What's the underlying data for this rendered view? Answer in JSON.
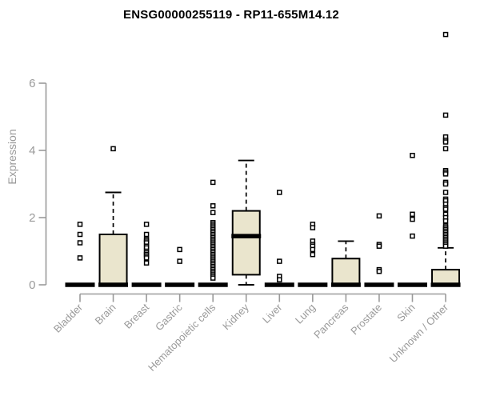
{
  "colors": {
    "background": "#ffffff",
    "axis": "#9a9a9a",
    "tick_text": "#9a9a9a",
    "title_text": "#000000",
    "box_fill": "#eae5cd",
    "box_border": "#000000",
    "median": "#000000",
    "whisker": "#000000",
    "outlier_stroke": "#000000",
    "outlier_fill": "#ffffff"
  },
  "chart_data": {
    "type": "boxplot",
    "title": "ENSG00000255119 - RP11-655M14.12",
    "xlabel": "",
    "ylabel": "Expression",
    "ylim": [
      0,
      6
    ],
    "yticks": [
      0,
      2,
      4,
      6
    ],
    "grid": false,
    "legend": "none",
    "categories": [
      "Bladder",
      "Brain",
      "Breast",
      "Gastric",
      "Hematopoietic cells",
      "Kidney",
      "Liver",
      "Lung",
      "Pancreas",
      "Prostate",
      "Skin",
      "Unknown / Other"
    ],
    "series": [
      {
        "name": "Bladder",
        "q1": 0,
        "median": 0,
        "q3": 0,
        "whisker_low": 0,
        "whisker_high": 0,
        "outliers": [
          1.8,
          1.5,
          1.25,
          0.8
        ]
      },
      {
        "name": "Brain",
        "q1": 0,
        "median": 0,
        "q3": 1.5,
        "whisker_low": 0,
        "whisker_high": 2.75,
        "outliers": [
          4.05
        ]
      },
      {
        "name": "Breast",
        "q1": 0,
        "median": 0,
        "q3": 0,
        "whisker_low": 0,
        "whisker_high": 0,
        "outliers": [
          1.8,
          1.5,
          1.35,
          1.3,
          1.25,
          1.15,
          1.1,
          1.0,
          0.95,
          0.9,
          0.85,
          0.8,
          0.65
        ]
      },
      {
        "name": "Gastric",
        "q1": 0,
        "median": 0,
        "q3": 0,
        "whisker_low": 0,
        "whisker_high": 0,
        "outliers": [
          1.05,
          0.7
        ]
      },
      {
        "name": "Hematopoietic cells",
        "q1": 0,
        "median": 0,
        "q3": 0,
        "whisker_low": 0,
        "whisker_high": 0,
        "outliers": [
          3.05,
          2.35,
          2.15,
          1.85,
          1.8,
          1.75,
          1.7,
          1.65,
          1.6,
          1.55,
          1.5,
          1.45,
          1.4,
          1.35,
          1.3,
          1.25,
          1.2,
          1.15,
          1.1,
          1.05,
          1.0,
          0.95,
          0.9,
          0.85,
          0.8,
          0.75,
          0.7,
          0.65,
          0.6,
          0.55,
          0.5,
          0.45,
          0.4,
          0.35,
          0.3,
          0.25,
          0.2
        ]
      },
      {
        "name": "Kidney",
        "q1": 0.3,
        "median": 1.45,
        "q3": 2.2,
        "whisker_low": 0,
        "whisker_high": 3.7,
        "outliers": []
      },
      {
        "name": "Liver",
        "q1": 0,
        "median": 0,
        "q3": 0,
        "whisker_low": 0,
        "whisker_high": 0,
        "outliers": [
          2.75,
          0.7,
          0.25,
          0.15
        ]
      },
      {
        "name": "Lung",
        "q1": 0,
        "median": 0,
        "q3": 0,
        "whisker_low": 0,
        "whisker_high": 0,
        "outliers": [
          1.8,
          1.7,
          1.3,
          1.2,
          1.15,
          1.05,
          0.9
        ]
      },
      {
        "name": "Pancreas",
        "q1": 0,
        "median": 0,
        "q3": 0.78,
        "whisker_low": 0,
        "whisker_high": 1.3,
        "outliers": []
      },
      {
        "name": "Prostate",
        "q1": 0,
        "median": 0,
        "q3": 0,
        "whisker_low": 0,
        "whisker_high": 0,
        "outliers": [
          2.05,
          1.2,
          1.15,
          0.45,
          0.4
        ]
      },
      {
        "name": "Skin",
        "q1": 0,
        "median": 0,
        "q3": 0,
        "whisker_low": 0,
        "whisker_high": 0,
        "outliers": [
          3.85,
          2.1,
          1.95,
          1.45
        ]
      },
      {
        "name": "Unknown / Other",
        "q1": 0,
        "median": 0,
        "q3": 0.45,
        "whisker_low": 0,
        "whisker_high": 1.1,
        "outliers": [
          7.45,
          5.05,
          4.4,
          4.3,
          4.25,
          4.05,
          3.4,
          3.35,
          3.3,
          3.05,
          3.0,
          2.75,
          2.55,
          2.5,
          2.4,
          2.3,
          2.25,
          2.1,
          2.0,
          1.9,
          1.75,
          1.7,
          1.65,
          1.6,
          1.55,
          1.5,
          1.45,
          1.4,
          1.35,
          1.3,
          1.25,
          1.2,
          1.15
        ]
      }
    ]
  }
}
